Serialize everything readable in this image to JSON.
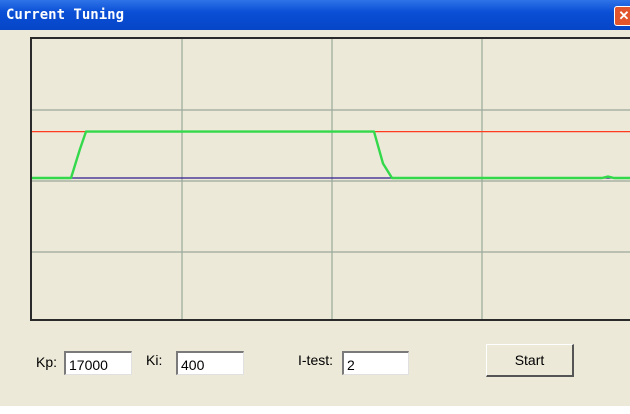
{
  "window": {
    "title": "Current Tuning",
    "close_glyph": "✕",
    "close_icon": "close-icon"
  },
  "controls": {
    "kp_label": "Kp:",
    "kp_value": "17000",
    "ki_label": "Ki:",
    "ki_value": "400",
    "itest_label": "I-test:",
    "itest_value": "2",
    "start_label": "Start"
  },
  "chart_data": {
    "type": "line",
    "grid": true,
    "grid_divisions": {
      "x": 4,
      "y": 4
    },
    "series": [
      {
        "color": "#ff3b1f",
        "x": [
          0,
          1
        ],
        "y": [
          0.32,
          0.32
        ]
      },
      {
        "color": "#2d1a8f",
        "x": [
          0,
          1
        ],
        "y": [
          0.0,
          0.0
        ]
      },
      {
        "color": "#33d94a",
        "x": [
          0,
          0.065,
          0.08,
          0.09,
          0.12,
          0.56,
          0.57,
          0.585,
          0.6,
          0.7,
          0.95,
          0.96,
          0.97,
          1
        ],
        "y": [
          0,
          0,
          0.2,
          0.32,
          0.32,
          0.32,
          0.32,
          0.1,
          0.0,
          0.0,
          0.0,
          0.01,
          0.0,
          0.0
        ]
      }
    ]
  }
}
